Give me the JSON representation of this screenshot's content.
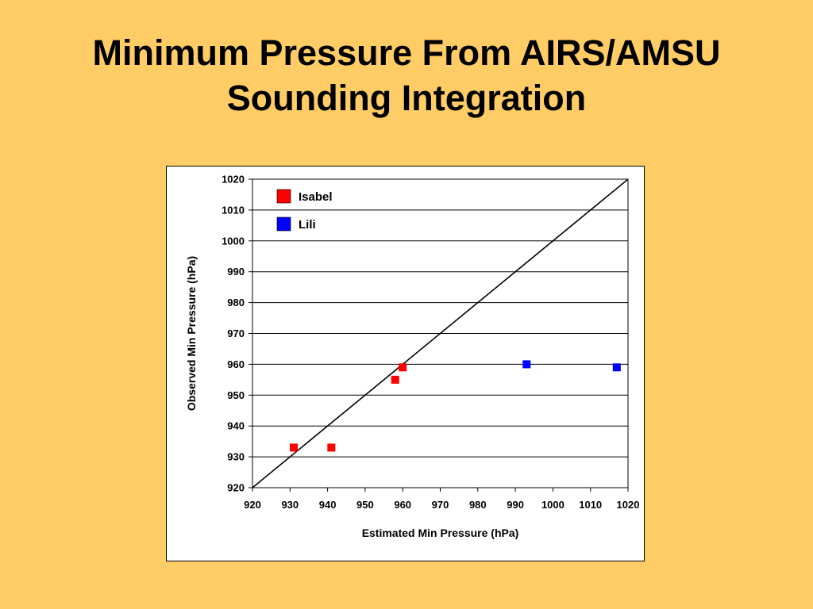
{
  "slide": {
    "title_line1": "Minimum Pressure From AIRS/AMSU",
    "title_line2": "Sounding Integration",
    "background_color": "#FFCC66"
  },
  "chart_data": {
    "type": "scatter",
    "xlabel": "Estimated Min Pressure (hPa)",
    "ylabel": "Observed Min Pressure (hPa)",
    "xlim": [
      920,
      1020
    ],
    "ylim": [
      920,
      1020
    ],
    "x_ticks": [
      920,
      930,
      940,
      950,
      960,
      970,
      980,
      990,
      1000,
      1010,
      1020
    ],
    "y_ticks": [
      920,
      930,
      940,
      950,
      960,
      970,
      980,
      990,
      1000,
      1010,
      1020
    ],
    "grid": "horizontal",
    "legend_position": "top-left",
    "reference_line": {
      "from": [
        920,
        920
      ],
      "to": [
        1020,
        1020
      ],
      "color": "#000000"
    },
    "series": [
      {
        "name": "Isabel",
        "color": "#FF0000",
        "marker": "square",
        "x": [
          931,
          941,
          958,
          960
        ],
        "y": [
          933,
          933,
          955,
          959
        ]
      },
      {
        "name": "Lili",
        "color": "#0000FF",
        "marker": "square",
        "x": [
          993,
          1017
        ],
        "y": [
          960,
          959
        ]
      }
    ]
  }
}
